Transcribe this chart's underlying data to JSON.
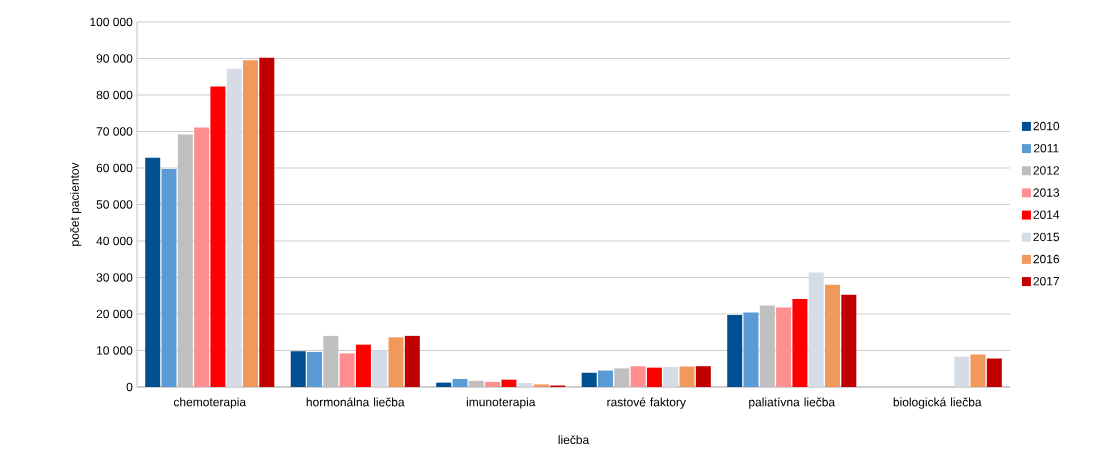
{
  "chart_data": {
    "type": "bar",
    "xlabel": "liečba",
    "ylabel": "počet pacientov",
    "categories": [
      "chemoterapia",
      "hormonálna liečba",
      "imunoterapia",
      "rastové faktory",
      "paliatívna liečba",
      "biologická liečba"
    ],
    "ylim": [
      0,
      100000
    ],
    "yticks": [
      0,
      {
        "value": 10000,
        "label": "10 000"
      },
      {
        "value": 20000,
        "label": "20 000"
      },
      {
        "value": 30000,
        "label": "30 000"
      },
      {
        "value": 40000,
        "label": "40 000"
      },
      {
        "value": 50000,
        "label": "50 000"
      },
      {
        "value": 60000,
        "label": "60 000"
      },
      {
        "value": 70000,
        "label": "70 000"
      },
      {
        "value": 80000,
        "label": "80 000"
      },
      {
        "value": 90000,
        "label": "90 000"
      },
      {
        "value": 100000,
        "label": "100 000"
      }
    ],
    "grid": "y",
    "legend": "right",
    "series": [
      {
        "name": "2010",
        "color": "#004f91",
        "values": [
          62800,
          9800,
          1200,
          3900,
          19700,
          null
        ]
      },
      {
        "name": "2011",
        "color": "#5b9bd5",
        "values": [
          59700,
          9600,
          2200,
          4500,
          20400,
          null
        ]
      },
      {
        "name": "2012",
        "color": "#bfbfbf",
        "values": [
          69200,
          14000,
          1700,
          5100,
          22300,
          null
        ]
      },
      {
        "name": "2013",
        "color": "#ff8f8f",
        "values": [
          71100,
          9200,
          1400,
          5700,
          21800,
          null
        ]
      },
      {
        "name": "2014",
        "color": "#ff0000",
        "values": [
          82300,
          11600,
          2000,
          5300,
          24100,
          null
        ]
      },
      {
        "name": "2015",
        "color": "#d6dce5",
        "values": [
          87200,
          10000,
          1100,
          5500,
          31400,
          8300
        ]
      },
      {
        "name": "2016",
        "color": "#f0995a",
        "values": [
          89500,
          13600,
          700,
          5600,
          28000,
          8900
        ]
      },
      {
        "name": "2017",
        "color": "#c00000",
        "values": [
          90200,
          14000,
          400,
          5700,
          25300,
          7800
        ]
      }
    ]
  }
}
